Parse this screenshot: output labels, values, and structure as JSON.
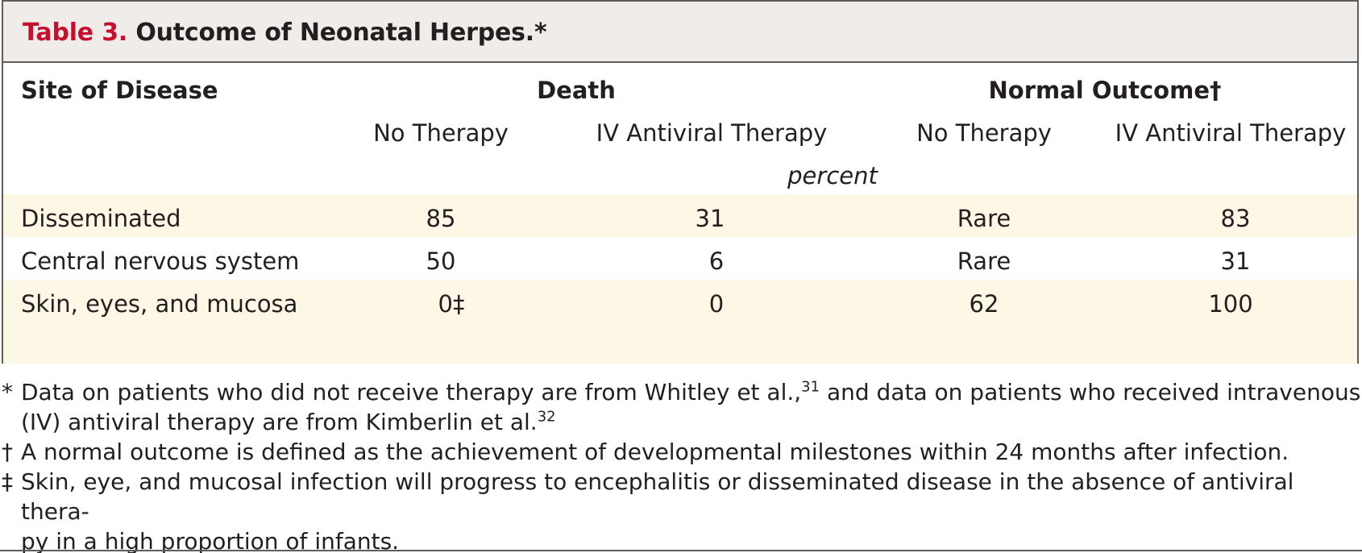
{
  "title": {
    "label": "Table 3.",
    "text": "Outcome of Neonatal Herpes.*"
  },
  "header": {
    "site_of_disease": "Site of Disease",
    "death": "Death",
    "normal_outcome": "Normal Outcome†",
    "sub": [
      "No Therapy",
      "IV Antiviral Therapy",
      "No Therapy",
      "IV Antiviral Therapy"
    ],
    "unit": "percent"
  },
  "rows": [
    {
      "site": "Disseminated",
      "values": [
        "85",
        "31",
        "Rare",
        "83"
      ]
    },
    {
      "site": "Central nervous system",
      "values": [
        "50",
        "6",
        "Rare",
        "31"
      ]
    },
    {
      "site": "Skin, eyes, and mucosa",
      "values": [
        "0‡",
        "0",
        "62",
        "100"
      ]
    }
  ],
  "footnotes": [
    {
      "mark": "*",
      "line1_a": "Data on patients who did not receive therapy are from Whitley et al.,",
      "line1_sup": "31",
      "line1_b": " and data on patients who received intravenous",
      "line2_a": "(IV)  antiviral therapy are from Kimberlin et al.",
      "line2_sup": "32"
    },
    {
      "mark": "†",
      "line1": "A normal outcome is defined as the achievement of developmental milestones within 24 months after infection."
    },
    {
      "mark": "‡",
      "line1": "Skin, eye, and mucosal infection will progress to encephalitis or disseminated disease in the absence of antiviral thera-",
      "line2": "py in a high proportion of infants."
    }
  ]
}
